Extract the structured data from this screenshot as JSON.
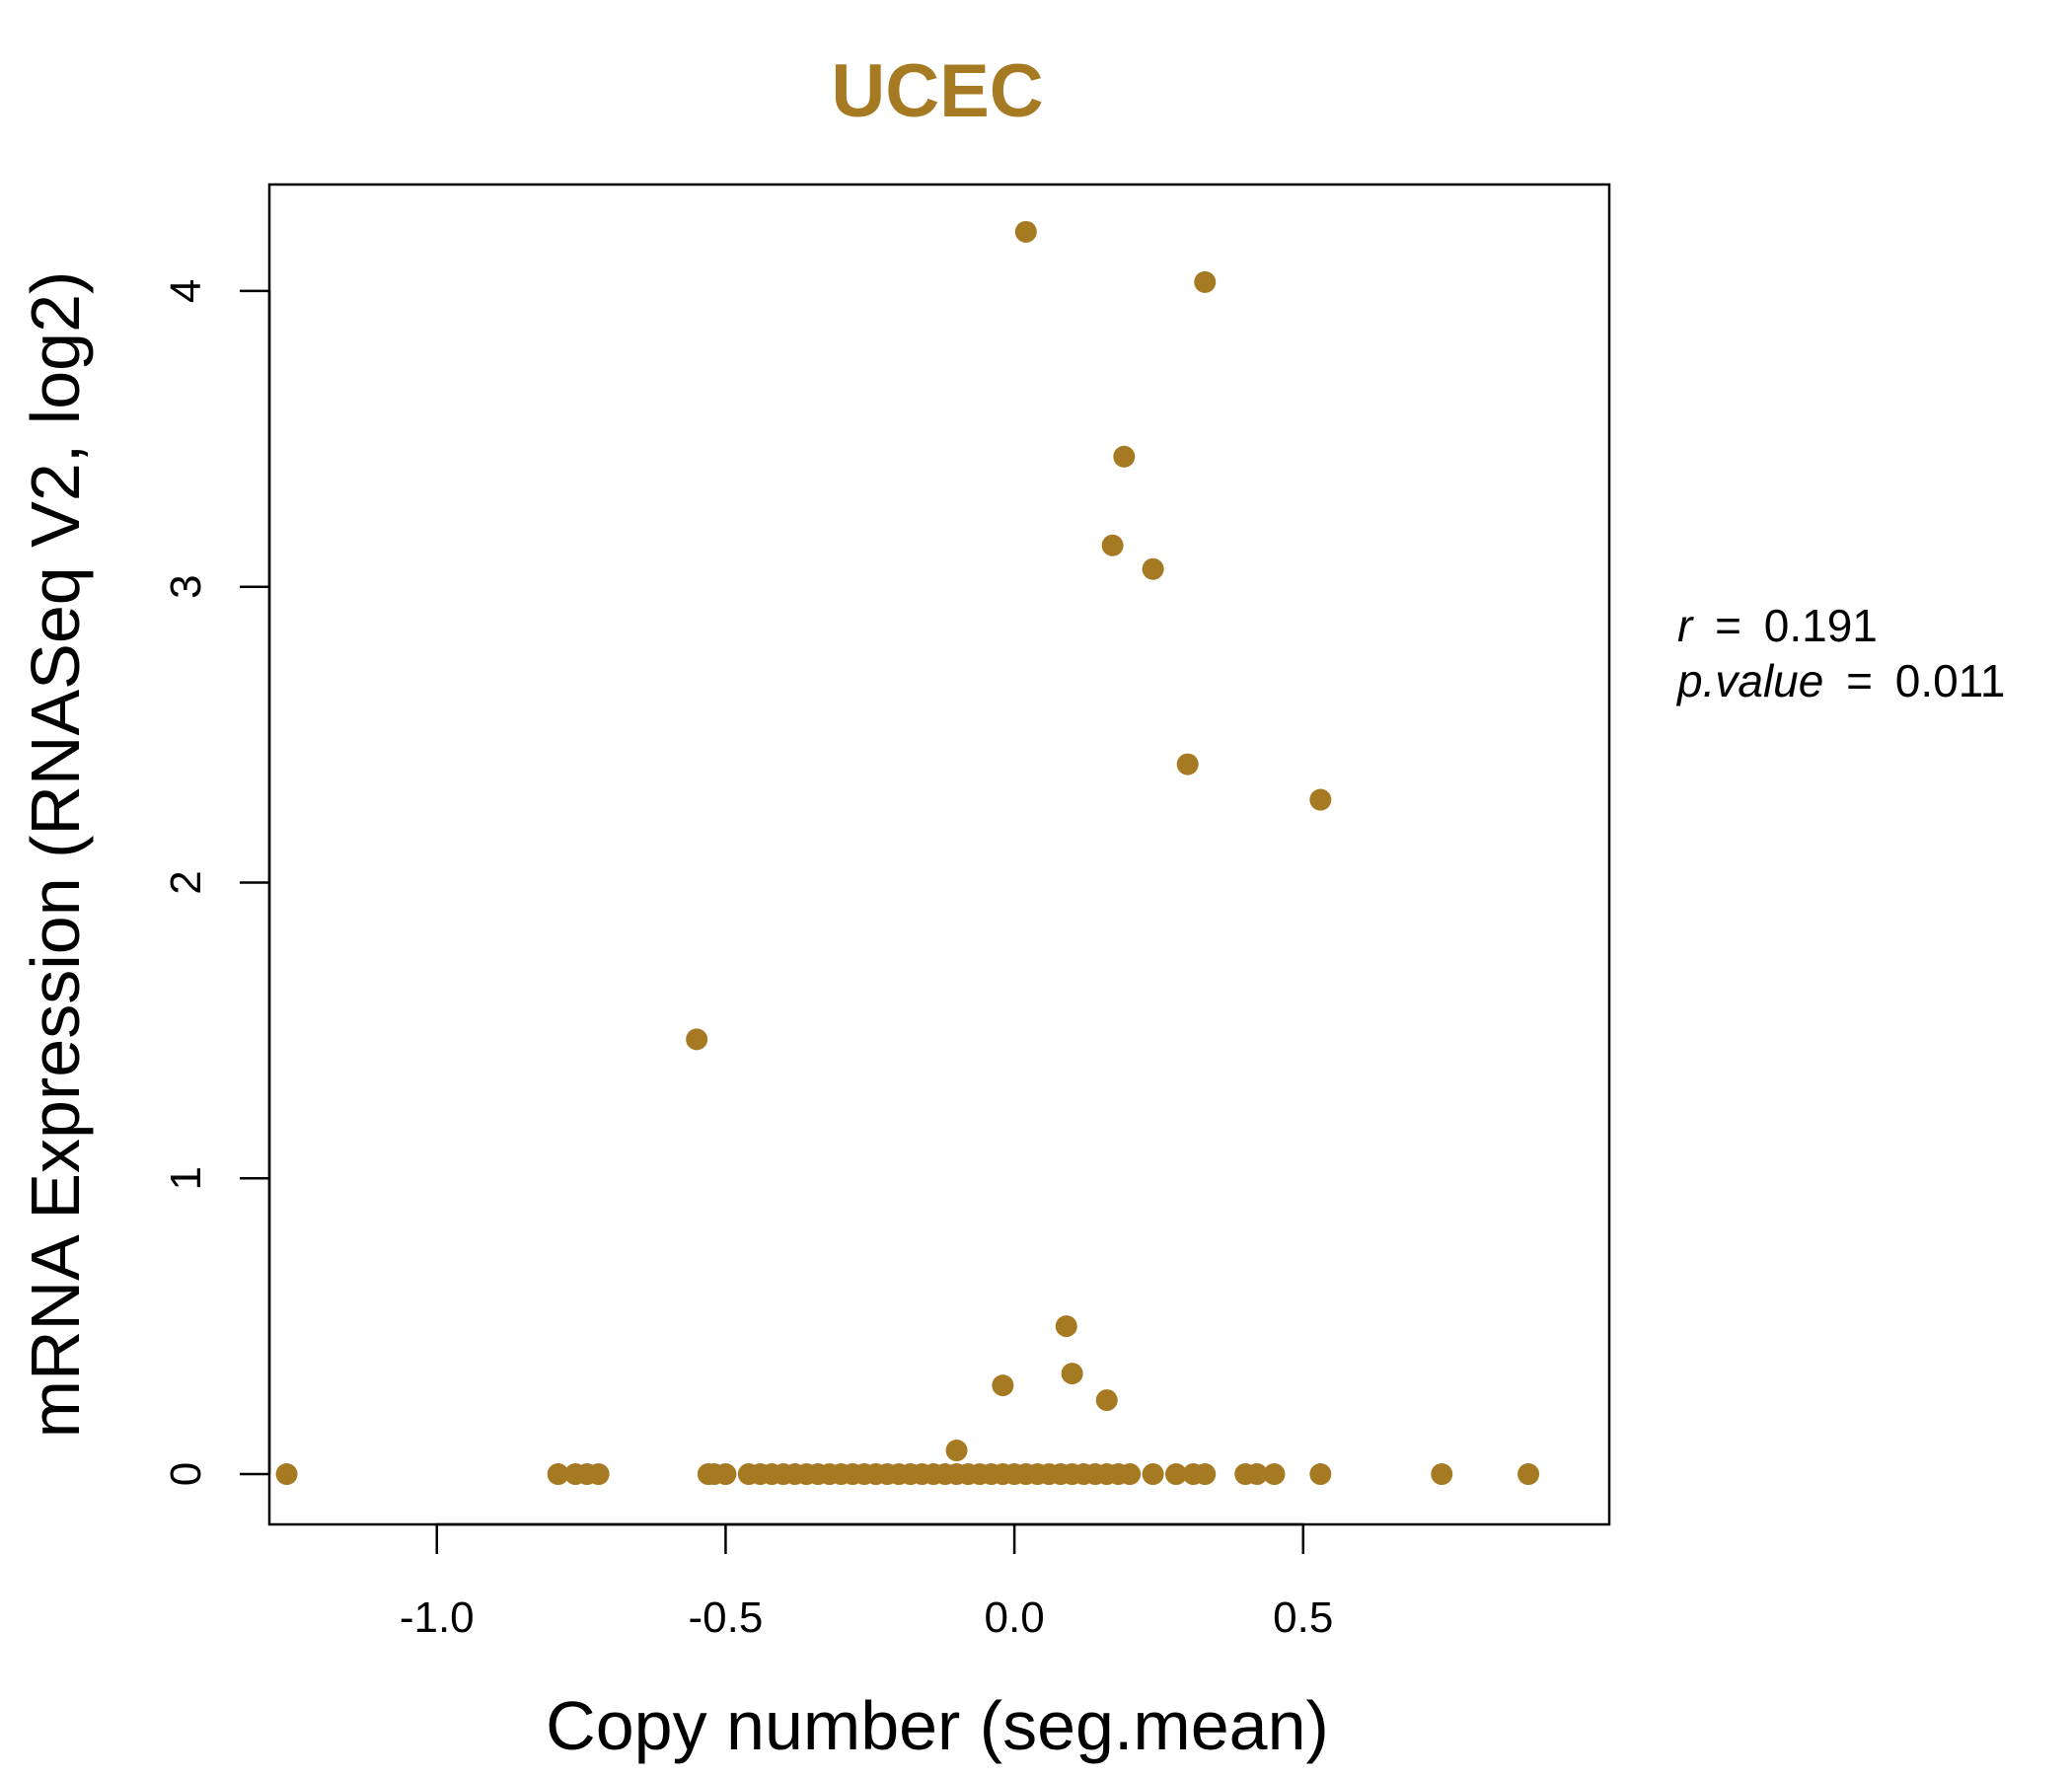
{
  "chart_data": {
    "type": "scatter",
    "title": "UCEC",
    "xlabel": "Copy number (seg.mean)",
    "ylabel": "mRNA Expression (RNASeq V2, log2)",
    "xlim": [
      -1.29,
      1.03
    ],
    "ylim": [
      -0.17,
      4.36
    ],
    "x_ticks": [
      -1.0,
      -0.5,
      0.0,
      0.5
    ],
    "x_tick_labels": [
      "-1.0",
      "-0.5",
      "0.0",
      "0.5"
    ],
    "y_ticks": [
      0,
      1,
      2,
      3,
      4
    ],
    "y_tick_labels": [
      "0",
      "1",
      "2",
      "3",
      "4"
    ],
    "grid": false,
    "point_color": "#A67A22",
    "title_color": "#A67A22",
    "stats": {
      "r_label": "r",
      "r_value": "0.191",
      "p_label": "p.value",
      "p_value": "0.011"
    },
    "points": [
      {
        "x": 0.02,
        "y": 4.2
      },
      {
        "x": 0.33,
        "y": 4.03
      },
      {
        "x": 0.19,
        "y": 3.44
      },
      {
        "x": 0.17,
        "y": 3.14
      },
      {
        "x": 0.24,
        "y": 3.06
      },
      {
        "x": 0.3,
        "y": 2.4
      },
      {
        "x": 0.53,
        "y": 2.28
      },
      {
        "x": -0.55,
        "y": 1.47
      },
      {
        "x": 0.09,
        "y": 0.5
      },
      {
        "x": 0.1,
        "y": 0.34
      },
      {
        "x": -0.02,
        "y": 0.3
      },
      {
        "x": 0.16,
        "y": 0.25
      },
      {
        "x": -0.1,
        "y": 0.08
      },
      {
        "x": -1.26,
        "y": 0
      },
      {
        "x": -0.79,
        "y": 0
      },
      {
        "x": -0.76,
        "y": 0
      },
      {
        "x": -0.74,
        "y": 0
      },
      {
        "x": -0.72,
        "y": 0
      },
      {
        "x": -0.53,
        "y": 0
      },
      {
        "x": -0.52,
        "y": 0
      },
      {
        "x": -0.5,
        "y": 0
      },
      {
        "x": -0.46,
        "y": 0
      },
      {
        "x": -0.44,
        "y": 0
      },
      {
        "x": -0.42,
        "y": 0
      },
      {
        "x": -0.4,
        "y": 0
      },
      {
        "x": -0.38,
        "y": 0
      },
      {
        "x": -0.36,
        "y": 0
      },
      {
        "x": -0.34,
        "y": 0
      },
      {
        "x": -0.32,
        "y": 0
      },
      {
        "x": -0.3,
        "y": 0
      },
      {
        "x": -0.28,
        "y": 0
      },
      {
        "x": -0.26,
        "y": 0
      },
      {
        "x": -0.24,
        "y": 0
      },
      {
        "x": -0.22,
        "y": 0
      },
      {
        "x": -0.2,
        "y": 0
      },
      {
        "x": -0.18,
        "y": 0
      },
      {
        "x": -0.16,
        "y": 0
      },
      {
        "x": -0.14,
        "y": 0
      },
      {
        "x": -0.12,
        "y": 0
      },
      {
        "x": -0.1,
        "y": 0
      },
      {
        "x": -0.08,
        "y": 0
      },
      {
        "x": -0.06,
        "y": 0
      },
      {
        "x": -0.04,
        "y": 0
      },
      {
        "x": -0.02,
        "y": 0
      },
      {
        "x": 0.0,
        "y": 0
      },
      {
        "x": 0.02,
        "y": 0
      },
      {
        "x": 0.04,
        "y": 0
      },
      {
        "x": 0.06,
        "y": 0
      },
      {
        "x": 0.08,
        "y": 0
      },
      {
        "x": 0.1,
        "y": 0
      },
      {
        "x": 0.12,
        "y": 0
      },
      {
        "x": 0.14,
        "y": 0
      },
      {
        "x": 0.16,
        "y": 0
      },
      {
        "x": 0.18,
        "y": 0
      },
      {
        "x": 0.2,
        "y": 0
      },
      {
        "x": 0.24,
        "y": 0
      },
      {
        "x": 0.28,
        "y": 0
      },
      {
        "x": 0.31,
        "y": 0
      },
      {
        "x": 0.33,
        "y": 0
      },
      {
        "x": 0.4,
        "y": 0
      },
      {
        "x": 0.42,
        "y": 0
      },
      {
        "x": 0.45,
        "y": 0
      },
      {
        "x": 0.53,
        "y": 0
      },
      {
        "x": 0.74,
        "y": 0
      },
      {
        "x": 0.89,
        "y": 0
      }
    ]
  }
}
